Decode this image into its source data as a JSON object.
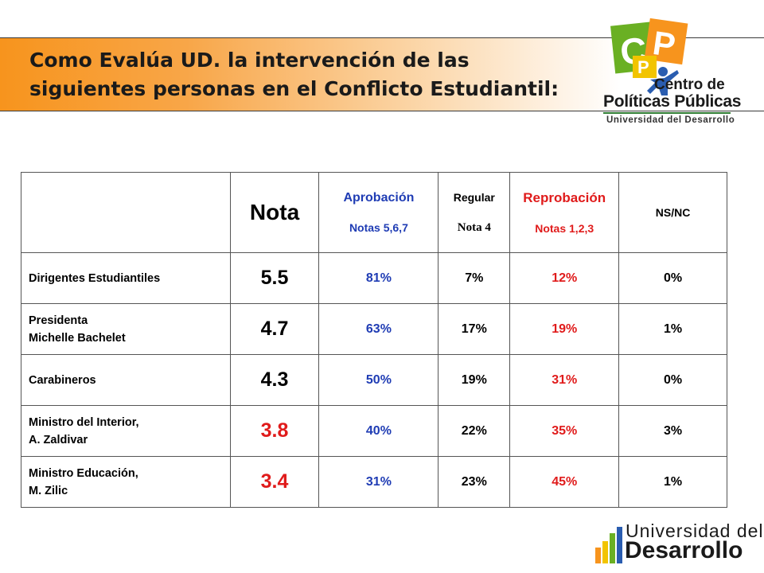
{
  "title": {
    "line1": "Como Evalúa UD. la intervención de las",
    "line2": "siguientes personas en el Conflicto Estudiantil:"
  },
  "logo_top": {
    "line1": "Centro de",
    "line2": "Políticas Públicas",
    "line3": "Universidad del Desarrollo"
  },
  "table": {
    "headers": {
      "nota": "Nota",
      "aprobacion": "Aprobación",
      "aprobacion_sub": "Notas 5,6,7",
      "regular": "Regular",
      "regular_sub": "Nota 4",
      "reprobacion": "Reprobación",
      "reprobacion_sub": "Notas 1,2,3",
      "nsnc": "NS/NC"
    },
    "rows": [
      {
        "label1": "Dirigentes Estudiantiles",
        "label2": "",
        "nota": "5.5",
        "aprobacion": "81%",
        "regular": "7%",
        "reprobacion": "12%",
        "nsnc": "0%"
      },
      {
        "label1": "Presidenta",
        "label2": "Michelle Bachelet",
        "nota": "4.7",
        "aprobacion": "63%",
        "regular": "17%",
        "reprobacion": "19%",
        "nsnc": "1%"
      },
      {
        "label1": "Carabineros",
        "label2": "",
        "nota": "4.3",
        "aprobacion": "50%",
        "regular": "19%",
        "reprobacion": "31%",
        "nsnc": "0%"
      },
      {
        "label1": "Ministro del Interior,",
        "label2": "A. Zaldivar",
        "nota": "3.8",
        "aprobacion": "40%",
        "regular": "22%",
        "reprobacion": "35%",
        "nsnc": "3%"
      },
      {
        "label1": "Ministro Educación,",
        "label2": "M. Zilic",
        "nota": "3.4",
        "aprobacion": "31%",
        "regular": "23%",
        "reprobacion": "45%",
        "nsnc": "1%"
      }
    ]
  },
  "logo_bottom": {
    "line1": "Universidad del",
    "line2": "Desarrollo"
  },
  "colors": {
    "accent_orange": "#f7941d",
    "approval_blue": "#1f3cb4",
    "reject_red": "#e01b1b",
    "low_score_red": "#e01b1b"
  }
}
